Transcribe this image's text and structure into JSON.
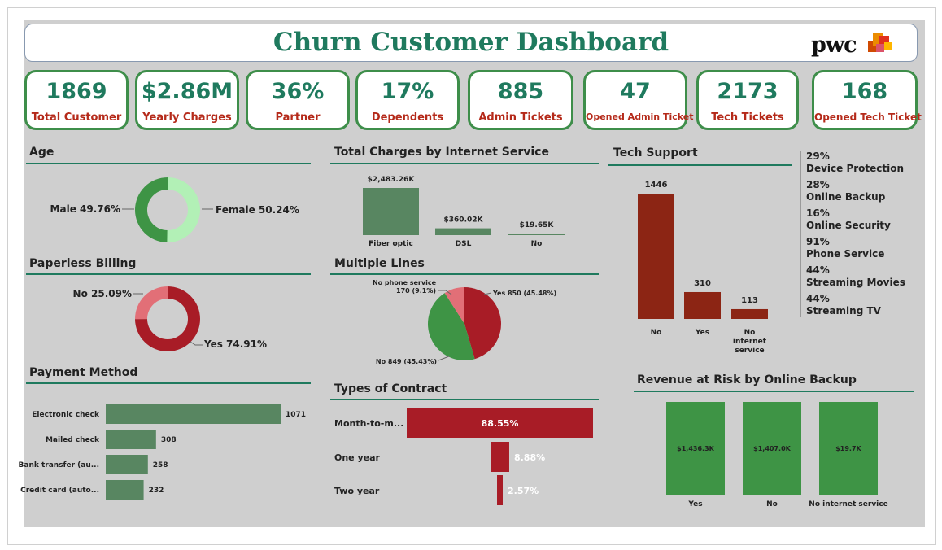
{
  "header": {
    "title": "Churn Customer Dashboard",
    "logo_text": "pwc"
  },
  "kpis": [
    {
      "value": "1869",
      "label": "Total Customer"
    },
    {
      "value": "$2.86M",
      "label": "Yearly Charges"
    },
    {
      "value": "36%",
      "label": "Partner"
    },
    {
      "value": "17%",
      "label": "Dependents"
    },
    {
      "value": "885",
      "label": "Admin Tickets"
    },
    {
      "value": "47",
      "label": "Opened Admin Ticket"
    },
    {
      "value": "2173",
      "label": "Tech Tickets"
    },
    {
      "value": "168",
      "label": "Opened Tech Ticket"
    }
  ],
  "sections": {
    "age": "Age",
    "paperless": "Paperless Billing",
    "payment": "Payment Method",
    "charges": "Total Charges by Internet Service",
    "multiple_lines": "Multiple Lines",
    "contract": "Types of Contract",
    "tech_support": "Tech Support",
    "revenue": "Revenue at Risk by Online Backup"
  },
  "services": [
    {
      "pct": "29%",
      "name": "Device Protection"
    },
    {
      "pct": "28%",
      "name": "Online Backup"
    },
    {
      "pct": "16%",
      "name": "Online Security"
    },
    {
      "pct": "91%",
      "name": "Phone Service"
    },
    {
      "pct": "44%",
      "name": "Streaming Movies"
    },
    {
      "pct": "44%",
      "name": "Streaming TV"
    }
  ],
  "colors": {
    "green": "#3e9445",
    "light_green": "#b2f0b6",
    "red": "#a81c26",
    "pink": "#e26f77",
    "teal": "#1f7a5e",
    "bar_green": "#588661",
    "dark_red": "#8c2514"
  },
  "chart_data": [
    {
      "id": "age",
      "type": "pie",
      "donut": true,
      "categories": [
        "Male",
        "Female"
      ],
      "values": [
        49.76,
        50.24
      ],
      "labels": [
        "Male 49.76%",
        "Female 50.24%"
      ],
      "colors": [
        "#3e9445",
        "#b2f0b6"
      ]
    },
    {
      "id": "paperless",
      "type": "pie",
      "donut": true,
      "categories": [
        "No",
        "Yes"
      ],
      "values": [
        25.09,
        74.91
      ],
      "labels": [
        "No 25.09%",
        "Yes 74.91%"
      ],
      "colors": [
        "#e26f77",
        "#a81c26"
      ]
    },
    {
      "id": "payment",
      "type": "bar",
      "orientation": "horizontal",
      "categories": [
        "Electronic check",
        "Mailed check",
        "Bank transfer (au...",
        "Credit card (auto..."
      ],
      "values": [
        1071,
        308,
        258,
        232
      ],
      "value_labels": [
        "1071",
        "308",
        "258",
        "232"
      ]
    },
    {
      "id": "charges",
      "type": "bar",
      "categories": [
        "Fiber optic",
        "DSL",
        "No"
      ],
      "values": [
        2483.26,
        360.02,
        19.65
      ],
      "value_labels": [
        "$2,483.26K",
        "$360.02K",
        "$19.65K"
      ]
    },
    {
      "id": "multiple_lines",
      "type": "pie",
      "categories": [
        "Yes",
        "No",
        "No phone service"
      ],
      "values": [
        850,
        849,
        170
      ],
      "labels": [
        "Yes 850 (45.48%)",
        "No 849 (45.43%)",
        "No phone service",
        "170 (9.1%)"
      ],
      "colors": [
        "#a81c26",
        "#3e9445",
        "#e26f77"
      ]
    },
    {
      "id": "contract",
      "type": "bar",
      "orientation": "horizontal",
      "style": "funnel",
      "categories": [
        "Month-to-m...",
        "One year",
        "Two year"
      ],
      "values": [
        88.55,
        8.88,
        2.57
      ],
      "value_labels": [
        "88.55%",
        "8.88%",
        "2.57%"
      ]
    },
    {
      "id": "tech_support",
      "type": "bar",
      "categories": [
        "No",
        "Yes",
        "No internet service"
      ],
      "category_lines": [
        [
          "No"
        ],
        [
          "Yes"
        ],
        [
          "No",
          "internet",
          "service"
        ]
      ],
      "values": [
        1446,
        310,
        113
      ],
      "value_labels": [
        "1446",
        "310",
        "113"
      ]
    },
    {
      "id": "revenue",
      "type": "bar",
      "categories": [
        "Yes",
        "No",
        "No internet service"
      ],
      "values": [
        1436.3,
        1407.0,
        19.7
      ],
      "value_labels": [
        "$1,436.3K",
        "$1,407.0K",
        "$19.7K"
      ]
    }
  ]
}
